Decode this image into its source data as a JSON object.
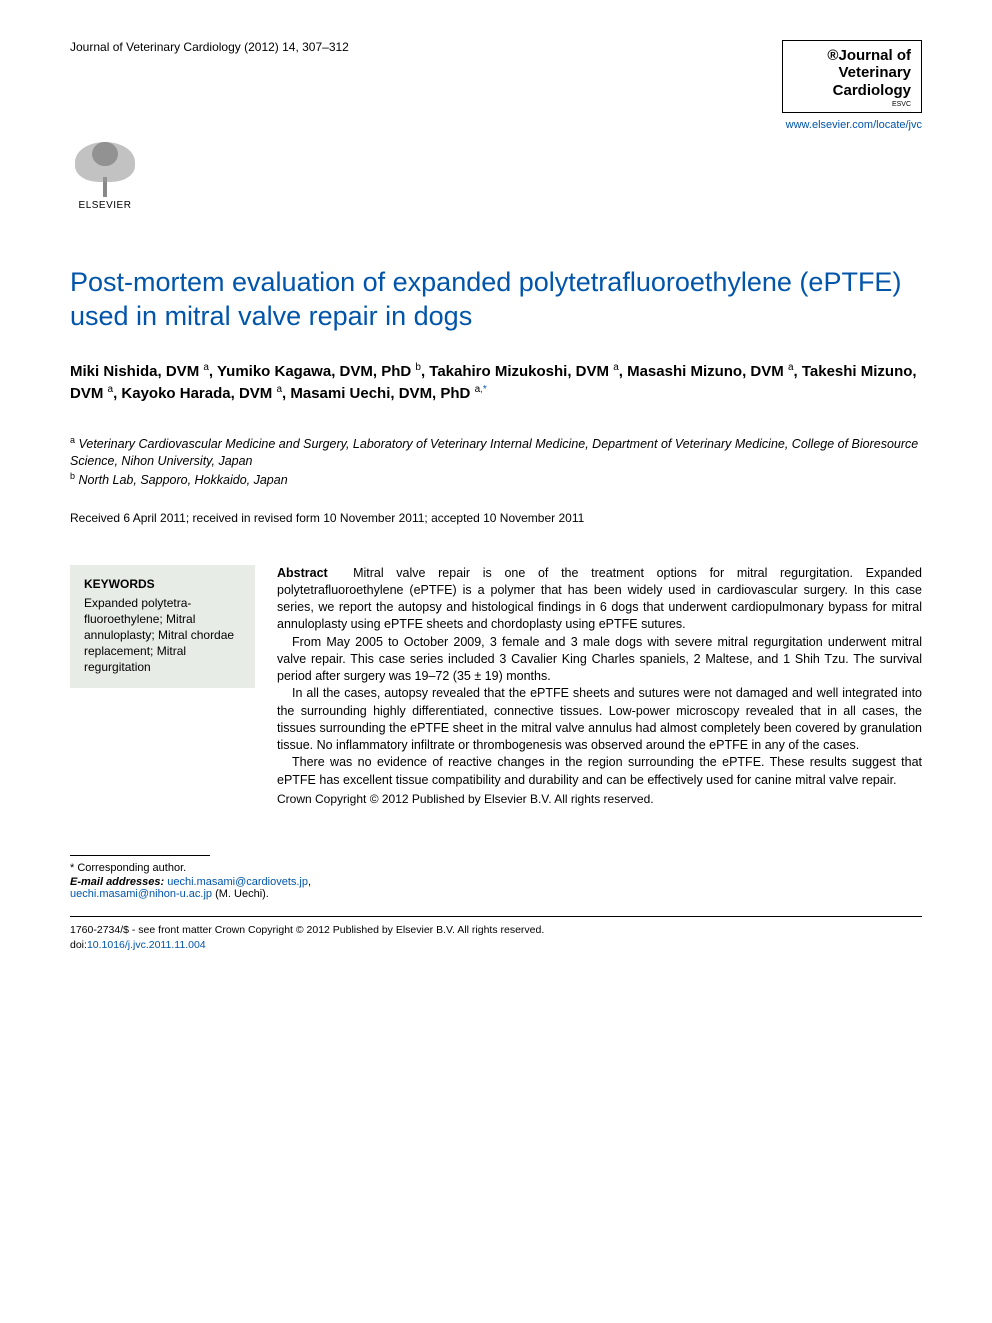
{
  "header": {
    "journal_reference": "Journal of Veterinary Cardiology (2012) 14, 307–312",
    "journal_box": {
      "prefix_icon": "®",
      "line1": "Journal of",
      "line2": "Veterinary",
      "line3": "Cardiology",
      "subline": "ESVC"
    },
    "publisher_logo_text": "ELSEVIER",
    "journal_url": "www.elsevier.com/locate/jvc"
  },
  "article": {
    "title": "Post-mortem evaluation of expanded polytetrafluoroethylene (ePTFE) used in mitral valve repair in dogs",
    "authors_html_parts": [
      {
        "name": "Miki Nishida, DVM",
        "aff": "a"
      },
      {
        "name": "Yumiko Kagawa, DVM, PhD",
        "aff": "b"
      },
      {
        "name": "Takahiro Mizukoshi, DVM",
        "aff": "a"
      },
      {
        "name": "Masashi Mizuno, DVM",
        "aff": "a"
      },
      {
        "name": "Takeshi Mizuno, DVM",
        "aff": "a"
      },
      {
        "name": "Kayoko Harada, DVM",
        "aff": "a"
      },
      {
        "name": "Masami Uechi, DVM, PhD",
        "aff": "a",
        "corresponding": true
      }
    ],
    "affiliations": [
      {
        "marker": "a",
        "text": "Veterinary Cardiovascular Medicine and Surgery, Laboratory of Veterinary Internal Medicine, Department of Veterinary Medicine, College of Bioresource Science, Nihon University, Japan"
      },
      {
        "marker": "b",
        "text": "North Lab, Sapporo, Hokkaido, Japan"
      }
    ],
    "dates": "Received 6 April 2011; received in revised form 10 November 2011; accepted 10 November 2011"
  },
  "keywords": {
    "heading": "KEYWORDS",
    "items": "Expanded polytetra-fluoroethylene; Mitral annuloplasty; Mitral chordae replacement; Mitral regurgitation"
  },
  "abstract": {
    "label": "Abstract",
    "p1": "Mitral valve repair is one of the treatment options for mitral regurgitation. Expanded polytetrafluoroethylene (ePTFE) is a polymer that has been widely used in cardiovascular surgery. In this case series, we report the autopsy and histological findings in 6 dogs that underwent cardiopulmonary bypass for mitral annuloplasty using ePTFE sheets and chordoplasty using ePTFE sutures.",
    "p2": "From May 2005 to October 2009, 3 female and 3 male dogs with severe mitral regurgitation underwent mitral valve repair. This case series included 3 Cavalier King Charles spaniels, 2 Maltese, and 1 Shih Tzu. The survival period after surgery was 19–72 (35 ± 19) months.",
    "p3": "In all the cases, autopsy revealed that the ePTFE sheets and sutures were not damaged and well integrated into the surrounding highly differentiated, connective tissues. Low-power microscopy revealed that in all cases, the tissues surrounding the ePTFE sheet in the mitral valve annulus had almost completely been covered by granulation tissue. No inflammatory infiltrate or thrombogenesis was observed around the ePTFE in any of the cases.",
    "p4": "There was no evidence of reactive changes in the region surrounding the ePTFE. These results suggest that ePTFE has excellent tissue compatibility and durability and can be effectively used for canine mitral valve repair.",
    "copyright": "Crown Copyright © 2012 Published by Elsevier B.V. All rights reserved."
  },
  "footer": {
    "corresponding": "* Corresponding author.",
    "email_label": "E-mail addresses:",
    "emails": [
      "uechi.masami@cardiovets.jp",
      "uechi.masami@nihon-u.ac.jp"
    ],
    "email_author": "(M. Uechi).",
    "issn_line": "1760-2734/$ - see front matter Crown Copyright © 2012 Published by Elsevier B.V. All rights reserved.",
    "doi_prefix": "doi:",
    "doi": "10.1016/j.jvc.2011.11.004"
  },
  "colors": {
    "link": "#0055aa",
    "title": "#0055aa",
    "keyword_bg": "#e8ece6",
    "text": "#000000",
    "background": "#ffffff"
  },
  "typography": {
    "title_fontsize": 27,
    "author_fontsize": 15,
    "body_fontsize": 12.5,
    "small_fontsize": 11
  }
}
